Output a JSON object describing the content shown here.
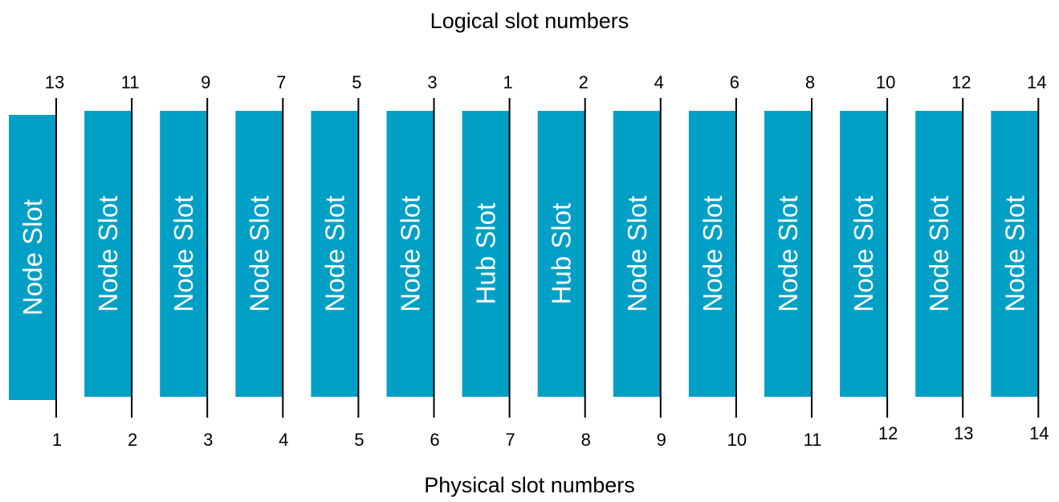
{
  "headings": {
    "logical": "Logical slot numbers",
    "physical": "Physical slot numbers"
  },
  "colors": {
    "slot_fill": "#00a0c6",
    "divider": "#000000",
    "label_text": "#ffffff"
  },
  "slots": [
    {
      "label": "Node Slot",
      "logical": "13",
      "physical": "1"
    },
    {
      "label": "Node Slot",
      "logical": "11",
      "physical": "2"
    },
    {
      "label": "Node Slot",
      "logical": "9",
      "physical": "3"
    },
    {
      "label": "Node Slot",
      "logical": "7",
      "physical": "4"
    },
    {
      "label": "Node Slot",
      "logical": "5",
      "physical": "5"
    },
    {
      "label": "Node Slot",
      "logical": "3",
      "physical": "6"
    },
    {
      "label": "Hub Slot",
      "logical": "1",
      "physical": "7"
    },
    {
      "label": "Hub Slot",
      "logical": "2",
      "physical": "8"
    },
    {
      "label": "Node Slot",
      "logical": "4",
      "physical": "9"
    },
    {
      "label": "Node Slot",
      "logical": "6",
      "physical": "10"
    },
    {
      "label": "Node Slot",
      "logical": "8",
      "physical": "11"
    },
    {
      "label": "Node Slot",
      "logical": "10",
      "physical": "12"
    },
    {
      "label": "Node Slot",
      "logical": "12",
      "physical": "13"
    },
    {
      "label": "Node Slot",
      "logical": "14",
      "physical": "14"
    }
  ]
}
